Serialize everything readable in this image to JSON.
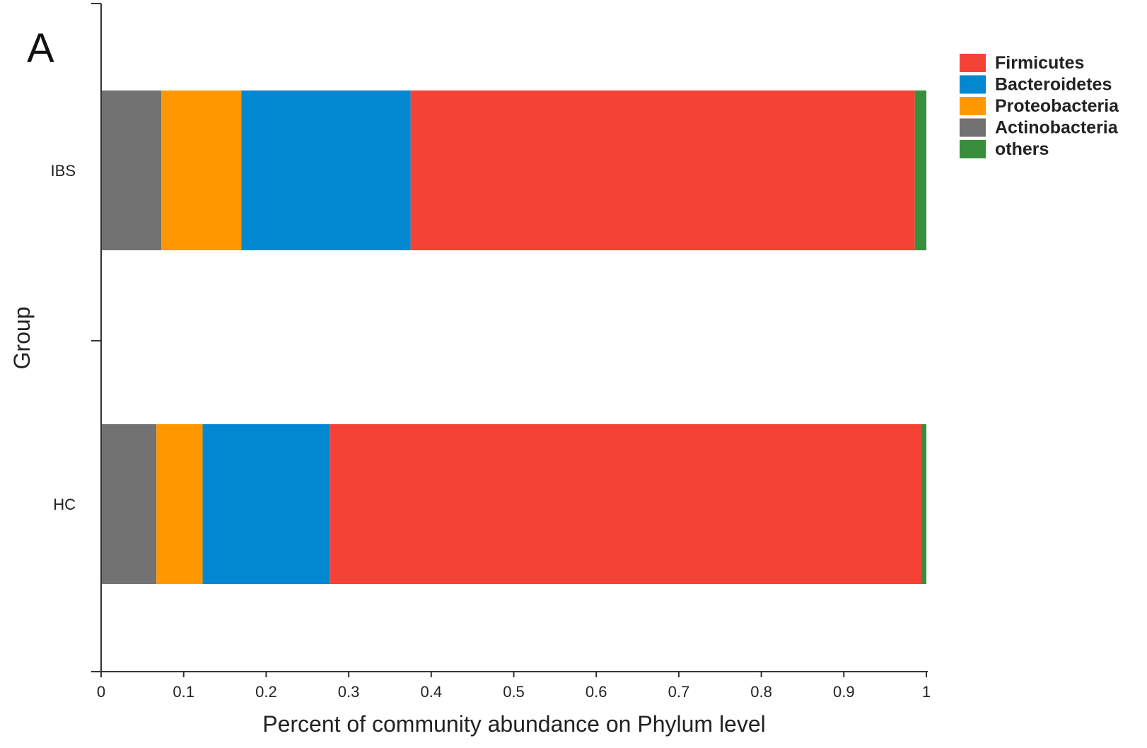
{
  "chart_data": {
    "type": "bar",
    "orientation": "horizontal",
    "stacked": true,
    "panel_label": "A",
    "xlabel": "Percent of community abundance on Phylum level",
    "ylabel": "Group",
    "xlim": [
      0,
      1
    ],
    "xticks": [
      "0",
      "0.1",
      "0.2",
      "0.3",
      "0.4",
      "0.5",
      "0.6",
      "0.7",
      "0.8",
      "0.9",
      "1"
    ],
    "categories": [
      "IBS",
      "HC"
    ],
    "series": [
      {
        "name": "Actinobacteria",
        "color": "#727272",
        "values": [
          0.073,
          0.067
        ]
      },
      {
        "name": "Proteobacteria",
        "color": "#FF9800",
        "values": [
          0.097,
          0.056
        ]
      },
      {
        "name": "Bacteroidetes",
        "color": "#0288D1",
        "values": [
          0.205,
          0.154
        ]
      },
      {
        "name": "Firmicutes",
        "color": "#F44336",
        "values": [
          0.611,
          0.717
        ]
      },
      {
        "name": "others",
        "color": "#388E3C",
        "values": [
          0.014,
          0.006
        ]
      }
    ],
    "legend_order": [
      "Firmicutes",
      "Bacteroidetes",
      "Proteobacteria",
      "Actinobacteria",
      "others"
    ],
    "legend_position": "top-right",
    "grid": false
  }
}
